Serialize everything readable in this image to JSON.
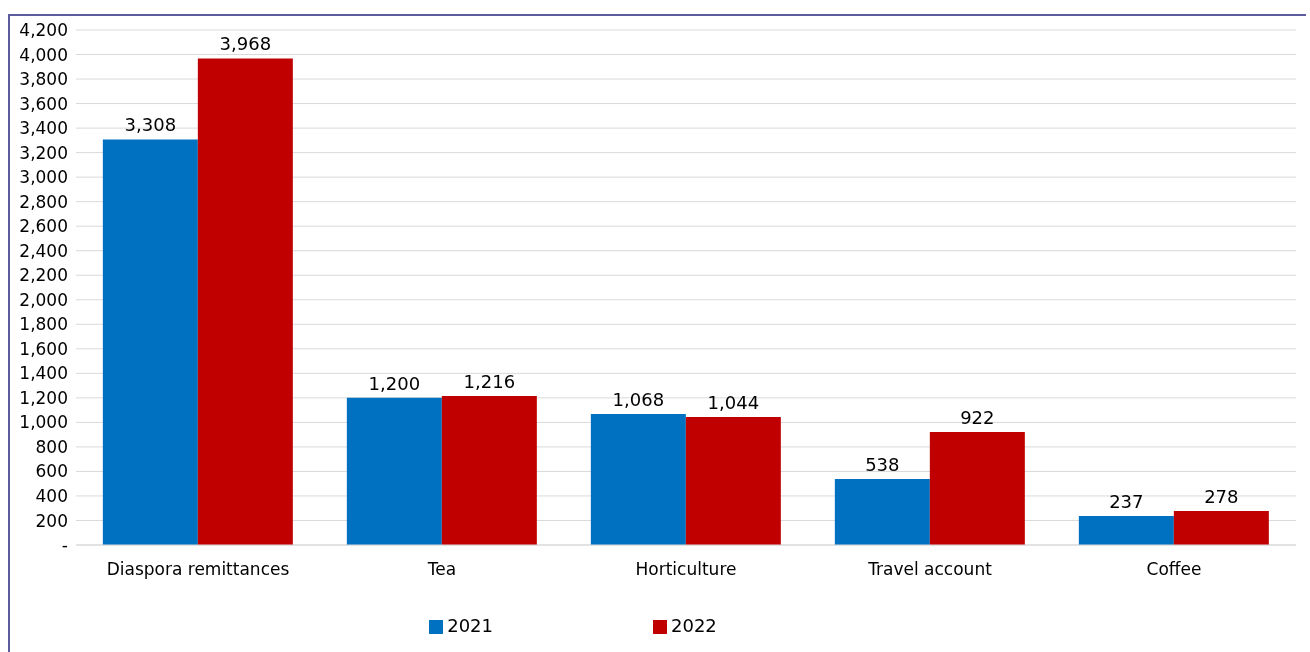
{
  "chart_data": {
    "type": "bar",
    "categories": [
      "Diaspora remittances",
      "Tea",
      "Horticulture",
      "Travel account",
      "Coffee"
    ],
    "series": [
      {
        "name": "2021",
        "color": "#0070c0",
        "values": [
          3308,
          1200,
          1068,
          538,
          237
        ],
        "value_labels": [
          "3,308",
          "1,200",
          "1,068",
          "538",
          "237"
        ]
      },
      {
        "name": "2022",
        "color": "#c00000",
        "values": [
          3968,
          1216,
          1044,
          922,
          278
        ],
        "value_labels": [
          "3,968",
          "1,216",
          "1,044",
          "922",
          "278"
        ]
      }
    ],
    "ylim": [
      0,
      4200
    ],
    "yticks": [
      {
        "value": 0,
        "label": "-"
      },
      200,
      400,
      600,
      800,
      {
        "value": 1000,
        "label": "1,000"
      },
      {
        "value": 1200,
        "label": "1,200"
      },
      {
        "value": 1400,
        "label": "1,400"
      },
      {
        "value": 1600,
        "label": "1,600"
      },
      {
        "value": 1800,
        "label": "1,800"
      },
      {
        "value": 2000,
        "label": "2,000"
      },
      {
        "value": 2200,
        "label": "2,200"
      },
      {
        "value": 2400,
        "label": "2,400"
      },
      {
        "value": 2600,
        "label": "2,600"
      },
      {
        "value": 2800,
        "label": "2,800"
      },
      {
        "value": 3000,
        "label": "3,000"
      },
      {
        "value": 3200,
        "label": "3,200"
      },
      {
        "value": 3400,
        "label": "3,400"
      },
      {
        "value": 3600,
        "label": "3,600"
      },
      {
        "value": 3800,
        "label": "3,800"
      },
      {
        "value": 4000,
        "label": "4,000"
      },
      {
        "value": 4200,
        "label": "4,200"
      }
    ],
    "grid": "y",
    "legend": "bottom"
  }
}
